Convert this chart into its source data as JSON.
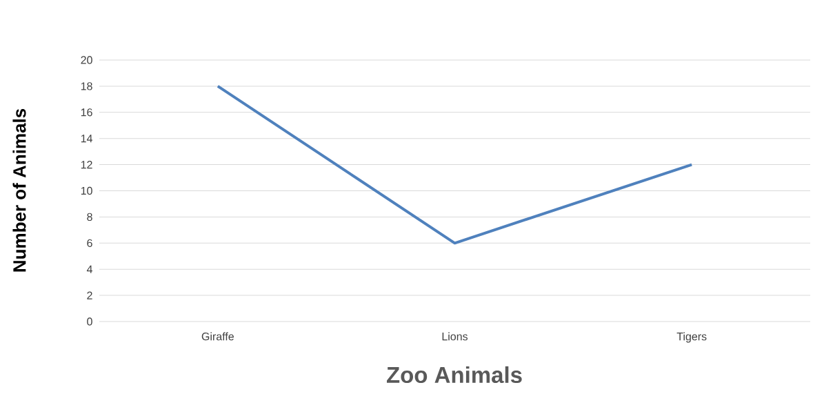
{
  "chart_data": {
    "type": "line",
    "xlabel": "Zoo Animals",
    "ylabel": "Number of Animals",
    "categories": [
      "Giraffe",
      "Lions",
      "Tigers"
    ],
    "series": [
      {
        "color": "#4f81bd",
        "values": [
          18,
          6,
          12
        ]
      }
    ],
    "ylim": [
      0,
      20
    ],
    "yticks": [
      0,
      2,
      4,
      6,
      8,
      10,
      12,
      14,
      16,
      18,
      20
    ],
    "grid": "y"
  }
}
